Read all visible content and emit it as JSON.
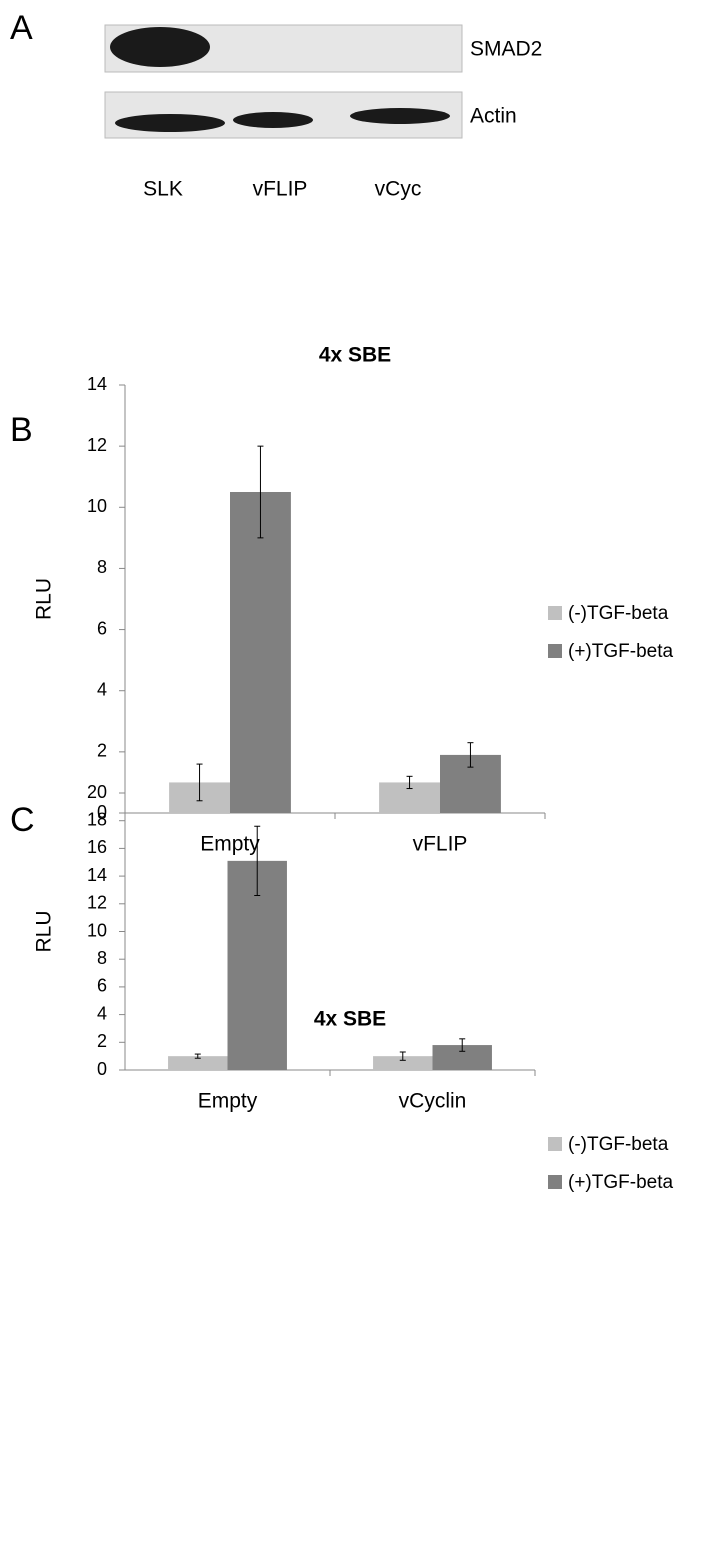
{
  "panel_a": {
    "label": "A",
    "blots": [
      "SMAD2",
      "Actin"
    ],
    "lanes": [
      "SLK",
      "vFLIP",
      "vCyc"
    ]
  },
  "chart_data": [
    {
      "type": "bar",
      "panel_label": "B",
      "title": "4x SBE",
      "y_label": "RLU",
      "categories": [
        "Empty",
        "vFLIP"
      ],
      "series": [
        {
          "name": "(-)TGF-beta",
          "color": "#c0c0c0",
          "values": [
            1,
            1
          ],
          "errors": [
            0.6,
            0.2
          ]
        },
        {
          "name": "(+)TGF-beta",
          "color": "#808080",
          "values": [
            10.5,
            1.9
          ],
          "errors": [
            1.5,
            0.4
          ]
        }
      ],
      "ylim": [
        0,
        14
      ],
      "yticks": [
        0,
        2,
        4,
        6,
        8,
        10,
        12,
        14
      ],
      "grid": false,
      "legend": "right"
    },
    {
      "type": "bar",
      "panel_label": "C",
      "title": "4x SBE",
      "y_label": "RLU",
      "categories": [
        "Empty",
        "vCyclin"
      ],
      "series": [
        {
          "name": "(-)TGF-beta",
          "color": "#c0c0c0",
          "values": [
            1,
            1
          ],
          "errors": [
            0.15,
            0.3
          ]
        },
        {
          "name": "(+)TGF-beta",
          "color": "#808080",
          "values": [
            15.1,
            1.8
          ],
          "errors": [
            2.5,
            0.45
          ]
        }
      ],
      "ylim": [
        0,
        20
      ],
      "yticks": [
        0,
        2,
        4,
        6,
        8,
        10,
        12,
        14,
        16,
        18,
        20
      ],
      "grid": false,
      "legend": "right"
    }
  ]
}
